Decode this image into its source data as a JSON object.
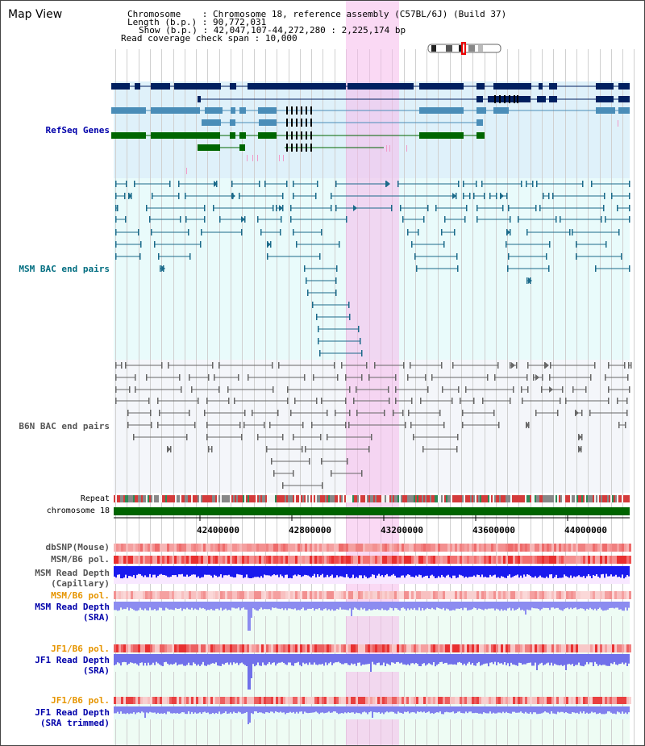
{
  "view": {
    "title": "Map View"
  },
  "info": {
    "chromosome_label": "Chromosome",
    "chromosome_value": "Chromosome 18, reference assembly (C57BL/6J) (Build 37)",
    "length_label": "Length (b.p.)",
    "length_value": "90,772,031",
    "show_label": "Show (b.p.)",
    "show_value": "42,047,107-44,272,280 : 2,225,174 bp",
    "span_label": "Read coverage check span",
    "span_value": "10,000",
    "separator": ":"
  },
  "tracks": {
    "refseq": "RefSeq Genes",
    "msm_bac": "MSM BAC end pairs",
    "b6n_bac": "B6N BAC end pairs",
    "repeat": "Repeat",
    "chromosome": "chromosome 18",
    "dbsnp": "dbSNP(Mouse)",
    "msm_b6_pol": "MSM/B6 pol.",
    "msm_read_cap_1": "MSM Read Depth",
    "msm_read_cap_2": "(Capillary)",
    "msm_b6_pol2": "MSM/B6 pol.",
    "msm_read_sra_1": "MSM Read Depth",
    "msm_read_sra_2": "(SRA)",
    "jf1_pol": "JF1/B6 pol.",
    "jf1_read_sra_1": "JF1 Read Depth",
    "jf1_read_sra_2": "(SRA)",
    "jf1_pol2": "JF1/B6 pol.",
    "jf1_read_trim_1": "JF1 Read Depth",
    "jf1_read_trim_2": "(SRA trimmed)"
  },
  "axis": {
    "ticks": [
      "42400000",
      "42800000",
      "43200000",
      "43600000",
      "44000000"
    ]
  },
  "colors": {
    "refseq_bg": "#dff1fa",
    "bac_bg": "#e9fbfb",
    "b6n_bg": "#f2f5fa",
    "highlight": "#f7d9f2",
    "gene_navy": "#002060",
    "gene_steel": "#4a8db8",
    "gene_green": "#006600",
    "bac_line": "#1a6a8a",
    "b6n_line": "#666666",
    "label_blue": "#0000aa",
    "label_teal": "#006d80",
    "label_orange": "#e69500"
  }
}
